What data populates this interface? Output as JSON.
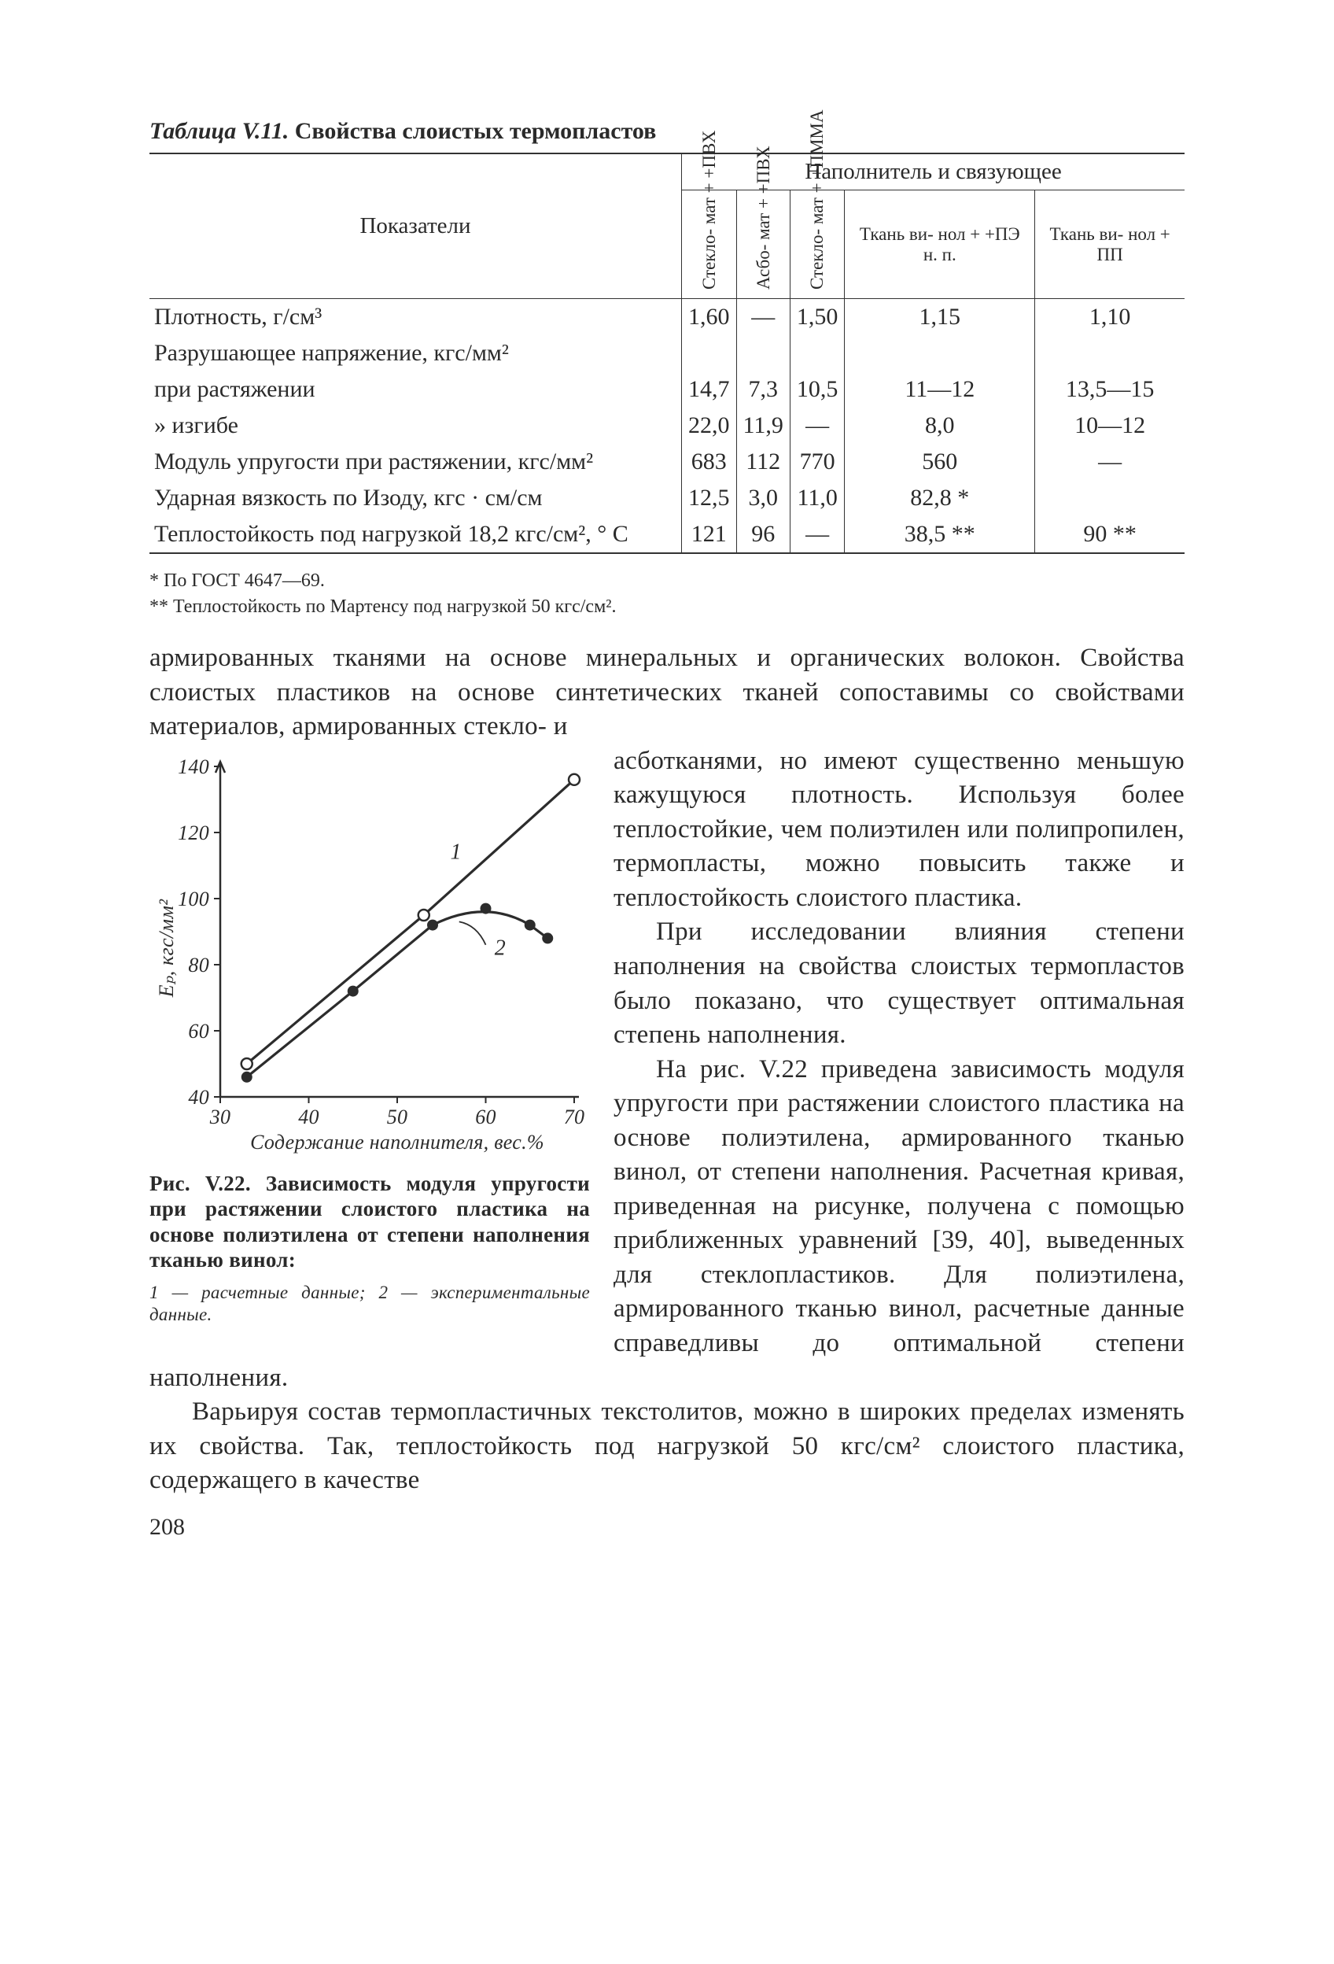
{
  "page_number": "208",
  "table": {
    "caption_prefix": "Таблица V.11.",
    "caption": "Свойства слоистых термопластов",
    "header_indicators": "Показатели",
    "header_group": "Наполнитель и связующее",
    "columns": [
      "Стекло-\nмат +\n+ПВХ",
      "Асбо-\nмат +\n+ПВХ",
      "Стекло-\nмат +\n+ПММА",
      "Ткань ви-\nнол +\n+ПЭ н. п.",
      "Ткань ви-\nнол + ПП"
    ],
    "rows": [
      {
        "label": "Плотность, г/см³",
        "vals": [
          "1,60",
          "—",
          "1,50",
          "1,15",
          "1,10"
        ]
      },
      {
        "label": "Разрушающее напряжение, кгс/мм²",
        "vals": [
          "",
          "",
          "",
          "",
          ""
        ]
      },
      {
        "label": "при растяжении",
        "indent": 1,
        "vals": [
          "14,7",
          "7,3",
          "10,5",
          "11—12",
          "13,5—15"
        ]
      },
      {
        "label": "»      изгибе",
        "indent": 2,
        "vals": [
          "22,0",
          "11,9",
          "—",
          "8,0",
          "10—12"
        ]
      },
      {
        "label": "Модуль упругости при растяжении, кгс/мм²",
        "vals": [
          "683",
          "112",
          "770",
          "560",
          "—"
        ]
      },
      {
        "label": "Ударная вязкость по Изоду, кгс · см/см",
        "vals": [
          "12,5",
          "3,0",
          "11,0",
          "82,8 *",
          ""
        ]
      },
      {
        "label": "Теплостойкость под нагрузкой 18,2 кгс/см², ° С",
        "vals": [
          "121",
          "96",
          "—",
          "38,5 **",
          "90 **"
        ]
      }
    ],
    "footnote1": "* По ГОСТ 4647—69.",
    "footnote2": "** Теплостойкость по Мартенсу под нагрузкой 50 кгс/см²."
  },
  "figure": {
    "type": "line",
    "xlabel": "Содержание наполнителя, вес.%",
    "ylabel": "Eₚ, кгс/мм²",
    "xlim": [
      30,
      70
    ],
    "ylim": [
      40,
      140
    ],
    "xtick_step": 10,
    "ytick_step": 20,
    "series1": {
      "name": "1",
      "marker": "open-circle",
      "points": [
        [
          33,
          50
        ],
        [
          53,
          95
        ],
        [
          70,
          136
        ]
      ]
    },
    "series2": {
      "name": "2",
      "marker": "filled-circle",
      "points": [
        [
          33,
          46
        ],
        [
          45,
          72
        ],
        [
          54,
          92
        ],
        [
          60,
          97
        ],
        [
          65,
          92
        ],
        [
          67,
          88
        ]
      ]
    },
    "line_color": "#2c2c2c",
    "axis_color": "#2c2c2c",
    "background_color": "#ffffff",
    "line_width": 3.2,
    "marker_size": 7,
    "tick_fontsize": 26,
    "axis_label_fontsize": 26,
    "caption_num": "Рис. V.22.",
    "caption_text": "Зависимость модуля упругости при растяжении слоистого пластика на основе полиэтилена от степени наполнения тканью винол:",
    "legend": "1 — расчетные данные;  2 — экспериментальные данные."
  },
  "paragraphs": {
    "p1": "армированных тканями на основе минеральных и органических волокон. Свойства слоистых пластиков на основе синтетических тканей сопоставимы со свойствами материалов, армированных стекло- и асботканями, но имеют существенно меньшую кажущуюся плотность. Используя более теплостойкие, чем полиэтилен или полипропилен, термопласты, можно повысить также и теплостойкость слоистого пластика.",
    "p2": "При исследовании влияния степени наполнения на свойства слоистых термопластов было показано, что существует оптимальная степень наполнения.",
    "p3": "На рис. V.22 приведена зависимость модуля упругости при растяжении слоистого пластика на основе полиэтилена, армированного тканью винол, от степени наполнения. Расчетная кривая, приведенная на рисунке, получена с помощью приближенных уравнений [39, 40], выведенных для стеклопластиков. Для полиэтилена, армированного тканью винол, расчетные данные справедливы до оптимальной степени наполнения.",
    "p4": "Варьируя состав термопластичных текстолитов, можно в широких пределах изменять их свойства. Так, теплостойкость под нагрузкой 50 кгс/см² слоистого пластика, содержащего в качестве"
  }
}
